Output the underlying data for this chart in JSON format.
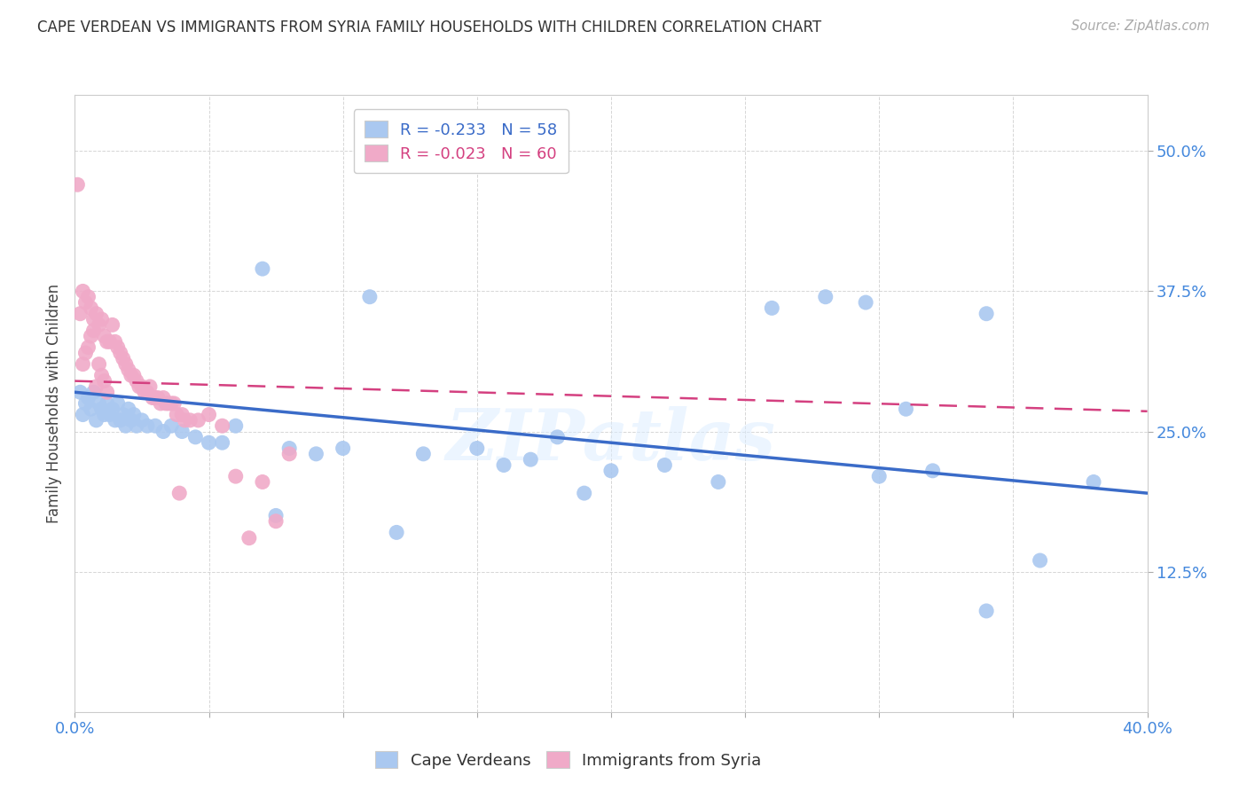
{
  "title": "CAPE VERDEAN VS IMMIGRANTS FROM SYRIA FAMILY HOUSEHOLDS WITH CHILDREN CORRELATION CHART",
  "source": "Source: ZipAtlas.com",
  "ylabel": "Family Households with Children",
  "xlim": [
    0.0,
    0.4
  ],
  "ylim": [
    0.0,
    0.55
  ],
  "xtick_positions": [
    0.0,
    0.05,
    0.1,
    0.15,
    0.2,
    0.25,
    0.3,
    0.35,
    0.4
  ],
  "xticklabels": [
    "0.0%",
    "",
    "",
    "",
    "",
    "",
    "",
    "",
    "40.0%"
  ],
  "ytick_positions": [
    0.125,
    0.25,
    0.375,
    0.5
  ],
  "ytick_labels": [
    "12.5%",
    "25.0%",
    "37.5%",
    "50.0%"
  ],
  "legend_blue_r": "-0.233",
  "legend_blue_n": "58",
  "legend_pink_r": "-0.023",
  "legend_pink_n": "60",
  "blue_color": "#aac8f0",
  "pink_color": "#f0aac8",
  "blue_line_color": "#3a6bc8",
  "pink_line_color": "#d44080",
  "watermark": "ZIPatlas",
  "blue_scatter_x": [
    0.002,
    0.003,
    0.004,
    0.005,
    0.006,
    0.007,
    0.008,
    0.009,
    0.01,
    0.011,
    0.012,
    0.013,
    0.014,
    0.015,
    0.016,
    0.017,
    0.018,
    0.019,
    0.02,
    0.021,
    0.022,
    0.023,
    0.025,
    0.027,
    0.03,
    0.033,
    0.036,
    0.04,
    0.045,
    0.05,
    0.055,
    0.06,
    0.07,
    0.08,
    0.09,
    0.1,
    0.11,
    0.13,
    0.15,
    0.16,
    0.17,
    0.18,
    0.2,
    0.22,
    0.24,
    0.26,
    0.28,
    0.3,
    0.31,
    0.32,
    0.34,
    0.36,
    0.38,
    0.34,
    0.295,
    0.19,
    0.12,
    0.075
  ],
  "blue_scatter_y": [
    0.285,
    0.265,
    0.275,
    0.28,
    0.27,
    0.285,
    0.26,
    0.275,
    0.27,
    0.265,
    0.275,
    0.265,
    0.27,
    0.26,
    0.275,
    0.26,
    0.265,
    0.255,
    0.27,
    0.26,
    0.265,
    0.255,
    0.26,
    0.255,
    0.255,
    0.25,
    0.255,
    0.25,
    0.245,
    0.24,
    0.24,
    0.255,
    0.395,
    0.235,
    0.23,
    0.235,
    0.37,
    0.23,
    0.235,
    0.22,
    0.225,
    0.245,
    0.215,
    0.22,
    0.205,
    0.36,
    0.37,
    0.21,
    0.27,
    0.215,
    0.09,
    0.135,
    0.205,
    0.355,
    0.365,
    0.195,
    0.16,
    0.175
  ],
  "pink_scatter_x": [
    0.001,
    0.002,
    0.003,
    0.004,
    0.005,
    0.006,
    0.007,
    0.008,
    0.009,
    0.01,
    0.011,
    0.012,
    0.013,
    0.014,
    0.015,
    0.016,
    0.017,
    0.018,
    0.019,
    0.02,
    0.021,
    0.022,
    0.023,
    0.024,
    0.025,
    0.026,
    0.027,
    0.028,
    0.029,
    0.03,
    0.031,
    0.032,
    0.033,
    0.034,
    0.035,
    0.036,
    0.037,
    0.038,
    0.039,
    0.04,
    0.041,
    0.043,
    0.046,
    0.05,
    0.055,
    0.06,
    0.065,
    0.07,
    0.075,
    0.08,
    0.003,
    0.004,
    0.005,
    0.006,
    0.007,
    0.008,
    0.009,
    0.01,
    0.011,
    0.012
  ],
  "pink_scatter_y": [
    0.47,
    0.355,
    0.375,
    0.365,
    0.37,
    0.36,
    0.35,
    0.355,
    0.345,
    0.35,
    0.335,
    0.33,
    0.33,
    0.345,
    0.33,
    0.325,
    0.32,
    0.315,
    0.31,
    0.305,
    0.3,
    0.3,
    0.295,
    0.29,
    0.29,
    0.285,
    0.285,
    0.29,
    0.28,
    0.28,
    0.28,
    0.275,
    0.28,
    0.275,
    0.275,
    0.275,
    0.275,
    0.265,
    0.195,
    0.265,
    0.26,
    0.26,
    0.26,
    0.265,
    0.255,
    0.21,
    0.155,
    0.205,
    0.17,
    0.23,
    0.31,
    0.32,
    0.325,
    0.335,
    0.34,
    0.29,
    0.31,
    0.3,
    0.295,
    0.285
  ],
  "blue_line_x": [
    0.0,
    0.4
  ],
  "blue_line_y": [
    0.285,
    0.195
  ],
  "pink_line_x": [
    0.0,
    0.4
  ],
  "pink_line_y": [
    0.295,
    0.268
  ]
}
